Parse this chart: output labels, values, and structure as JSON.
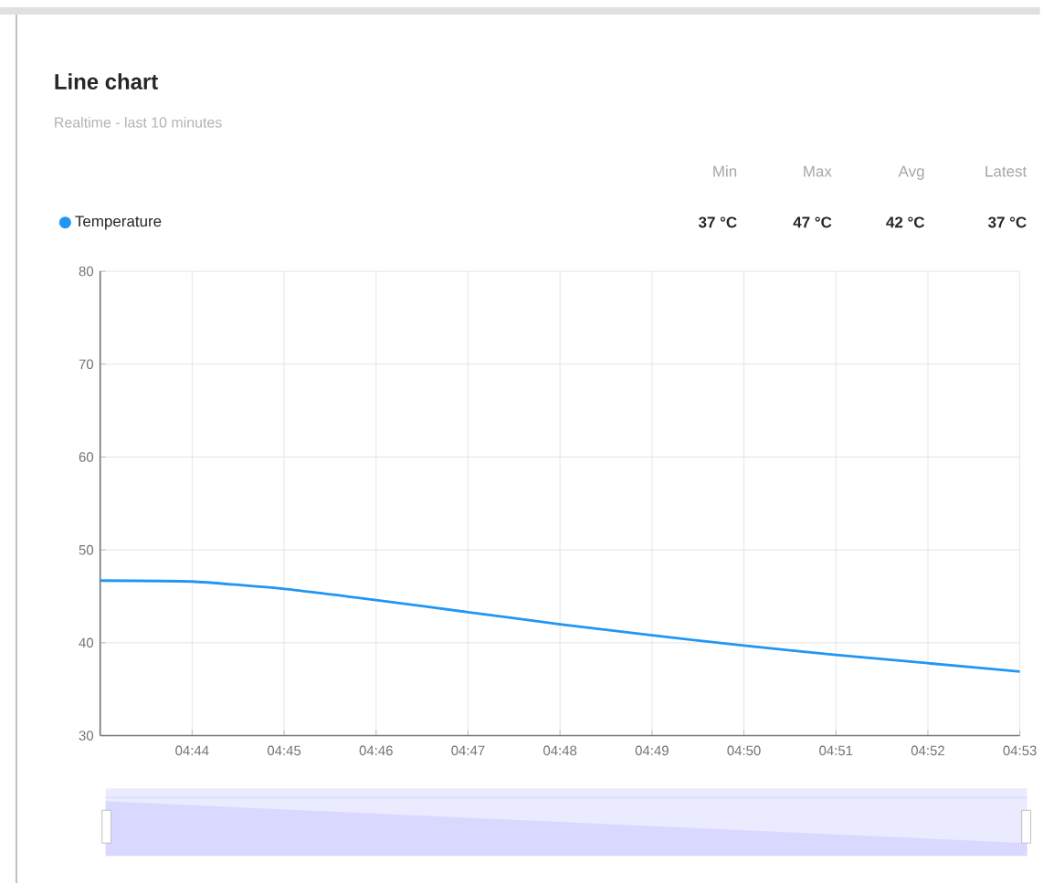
{
  "chart_data": {
    "type": "line",
    "title": "Line chart",
    "subtitle": "Realtime - last 10 minutes",
    "x": [
      4.71667,
      4.73333,
      4.75,
      4.76667,
      4.78333,
      4.8,
      4.81667,
      4.83333,
      4.85,
      4.86667,
      4.88333
    ],
    "series": [
      {
        "name": "Temperature",
        "color": "#2196f3",
        "values": [
          46.7,
          46.6,
          45.8,
          44.6,
          43.3,
          42.0,
          40.8,
          39.7,
          38.7,
          37.8,
          36.9
        ]
      }
    ],
    "xlim": [
      4.71667,
      4.88333
    ],
    "xticks": [
      {
        "value": 4.73333,
        "label": "04:44"
      },
      {
        "value": 4.75,
        "label": "04:45"
      },
      {
        "value": 4.76667,
        "label": "04:46"
      },
      {
        "value": 4.78333,
        "label": "04:47"
      },
      {
        "value": 4.8,
        "label": "04:48"
      },
      {
        "value": 4.81667,
        "label": "04:49"
      },
      {
        "value": 4.83333,
        "label": "04:50"
      },
      {
        "value": 4.85,
        "label": "04:51"
      },
      {
        "value": 4.86667,
        "label": "04:52"
      },
      {
        "value": 4.88333,
        "label": "04:53"
      }
    ],
    "ylim": [
      30,
      80
    ],
    "yticks": [
      30,
      40,
      50,
      60,
      70,
      80
    ],
    "grid": true,
    "legend": "top left",
    "marker": "none",
    "line_style": "solid",
    "annotations": [
      "Min",
      "Max",
      "Avg",
      "Latest",
      "37 °C",
      "47 °C",
      "42 °C",
      "37 °C"
    ]
  }
}
